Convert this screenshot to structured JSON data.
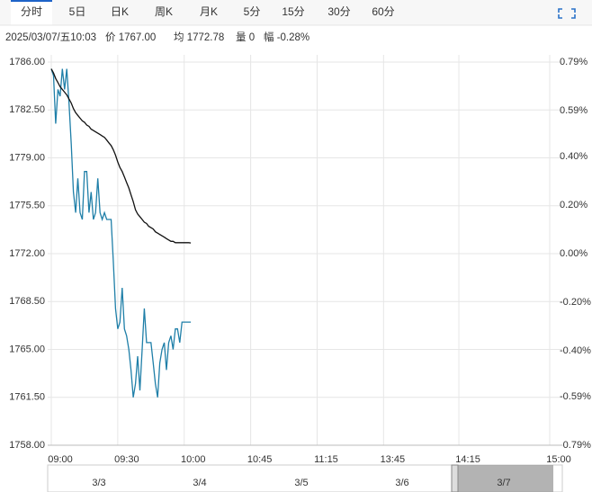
{
  "tabs": [
    "分时",
    "5日",
    "日K",
    "周K",
    "月K",
    "5分",
    "15分",
    "30分",
    "60分"
  ],
  "info": {
    "time": "2025/03/07/五10:03",
    "price": "价 1767.00",
    "avg": "均 1772.78",
    "volume": "量 0",
    "change": "幅 -0.28%"
  },
  "navigator": {
    "dates": [
      "3/3",
      "3/4",
      "3/5",
      "3/6",
      "3/7"
    ]
  },
  "chart_data": {
    "type": "line",
    "xlim": [
      0,
      225
    ],
    "xticks": [
      {
        "value": 0,
        "label": "09:00"
      },
      {
        "value": 30,
        "label": "09:30"
      },
      {
        "value": 60,
        "label": "10:00"
      },
      {
        "value": 90,
        "label": "10:45"
      },
      {
        "value": 120,
        "label": "11:15"
      },
      {
        "value": 150,
        "label": "13:45"
      },
      {
        "value": 184,
        "label": "14:15"
      },
      {
        "value": 225,
        "label": "15:00"
      }
    ],
    "ylim": [
      1758,
      1786
    ],
    "yticks": [
      {
        "value": 1786,
        "label": "1786.00"
      },
      {
        "value": 1782.5,
        "label": "1782.50"
      },
      {
        "value": 1779,
        "label": "1779.00"
      },
      {
        "value": 1775.5,
        "label": "1775.50"
      },
      {
        "value": 1772,
        "label": "1772.00"
      },
      {
        "value": 1768.5,
        "label": "1768.50"
      },
      {
        "value": 1765,
        "label": "1765.00"
      },
      {
        "value": 1761.5,
        "label": "1761.50"
      },
      {
        "value": 1758,
        "label": "1758.00"
      }
    ],
    "y2lim": [
      -0.79,
      0.79
    ],
    "y2ticks": [
      {
        "value": 0.79,
        "label": "0.79%"
      },
      {
        "value": 0.59,
        "label": "0.59%"
      },
      {
        "value": 0.4,
        "label": "0.40%"
      },
      {
        "value": 0.2,
        "label": "0.20%"
      },
      {
        "value": 0,
        "label": "0.00%"
      },
      {
        "value": -0.2,
        "label": "-0.20%"
      },
      {
        "value": -0.4,
        "label": "-0.40%"
      },
      {
        "value": -0.59,
        "label": "-0.59%"
      },
      {
        "value": -0.79,
        "label": "-0.79%"
      }
    ],
    "grid": true,
    "up_color": "#e00000",
    "down_color": "#1a9a1a",
    "flat_color": "#222222",
    "series": [
      {
        "color": "#1f7fa8",
        "values": [
          1785.5,
          1785.0,
          1781.5,
          1784.0,
          1783.5,
          1785.5,
          1784.0,
          1785.5,
          1783.0,
          1780.0,
          1776.5,
          1775.0,
          1777.5,
          1775.0,
          1774.5,
          1778.0,
          1778.0,
          1775.0,
          1776.5,
          1774.5,
          1775.0,
          1777.5,
          1775.0,
          1774.5,
          1775.0,
          1774.5,
          1774.5,
          1774.5,
          1771.5,
          1768.0,
          1766.5,
          1767.0,
          1769.5,
          1766.5,
          1766.0,
          1765.0,
          1763.5,
          1761.5,
          1762.5,
          1764.5,
          1762.0,
          1765.0,
          1768.0,
          1765.5,
          1765.5,
          1765.5,
          1764.0,
          1762.5,
          1761.5,
          1764.0,
          1765.0,
          1765.5,
          1763.5,
          1765.5,
          1766.0,
          1765.0,
          1766.5,
          1766.5,
          1765.5,
          1767.0,
          1767.0,
          1767.0,
          1767.0,
          1767.0
        ]
      },
      {
        "color": "#111111",
        "values": [
          1785.5,
          1785.2,
          1784.8,
          1784.5,
          1784.2,
          1784.0,
          1783.8,
          1783.6,
          1783.3,
          1783.0,
          1782.6,
          1782.3,
          1782.1,
          1781.9,
          1781.7,
          1781.6,
          1781.4,
          1781.3,
          1781.1,
          1781.0,
          1780.9,
          1780.8,
          1780.7,
          1780.6,
          1780.5,
          1780.3,
          1780.1,
          1779.9,
          1779.6,
          1779.2,
          1778.7,
          1778.3,
          1778.0,
          1777.6,
          1777.2,
          1776.8,
          1776.3,
          1775.8,
          1775.2,
          1774.9,
          1774.7,
          1774.5,
          1774.3,
          1774.2,
          1774.0,
          1773.9,
          1773.8,
          1773.6,
          1773.5,
          1773.4,
          1773.3,
          1773.2,
          1773.1,
          1773.0,
          1772.9,
          1772.9,
          1772.8,
          1772.8,
          1772.8,
          1772.8,
          1772.8,
          1772.8,
          1772.8,
          1772.78
        ]
      }
    ]
  }
}
